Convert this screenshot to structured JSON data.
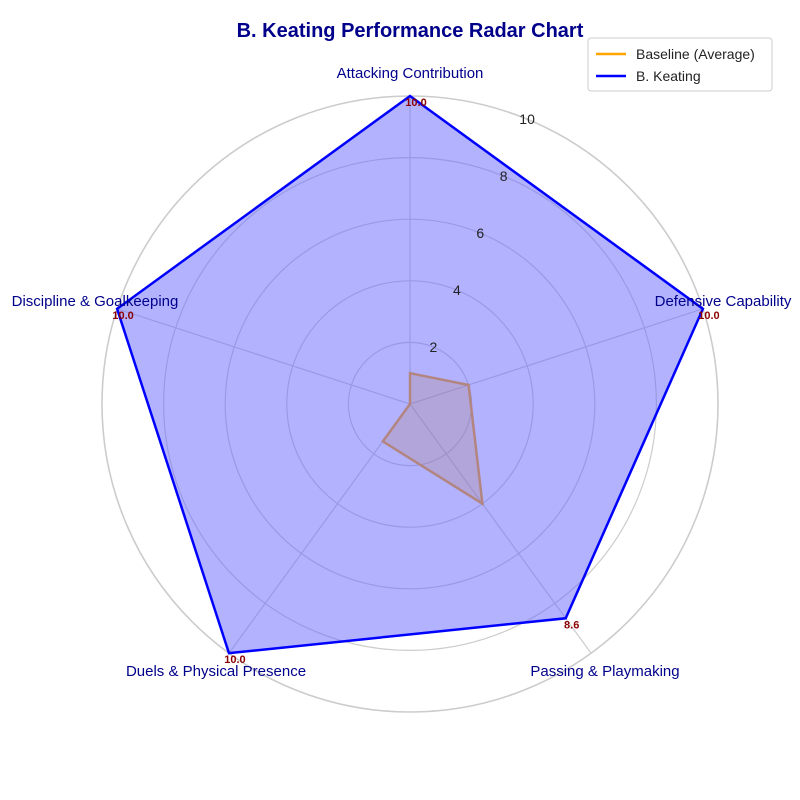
{
  "chart_data": {
    "type": "radar",
    "title": "B. Keating Performance Radar Chart",
    "categories": [
      "Attacking Contribution",
      "Defensive Capability",
      "Passing & Playmaking",
      "Duels & Physical Presence",
      "Discipline & Goalkeeping"
    ],
    "rlim": [
      0,
      10
    ],
    "r_ticks": [
      "2",
      "4",
      "6",
      "8",
      "10"
    ],
    "r_tick_values": [
      2,
      4,
      6,
      8,
      10
    ],
    "grid": true,
    "legend_position": "top-right",
    "series": [
      {
        "name": "Baseline (Average)",
        "values": [
          1.0,
          2.0,
          4.0,
          1.5,
          0.0
        ],
        "color": "#ffa500",
        "fill": "#ffa500",
        "fill_opacity": 0.3
      },
      {
        "name": "B. Keating",
        "values": [
          10.0,
          10.0,
          8.6,
          10.0,
          10.0
        ],
        "value_labels": [
          "10.0",
          "10.0",
          "8.6",
          "10.0",
          "10.0"
        ],
        "color": "#0000ff",
        "fill": "#6666ff",
        "fill_opacity": 0.5
      }
    ],
    "value_label_color": "#8b0000",
    "axis_label_color": "#00008b"
  }
}
